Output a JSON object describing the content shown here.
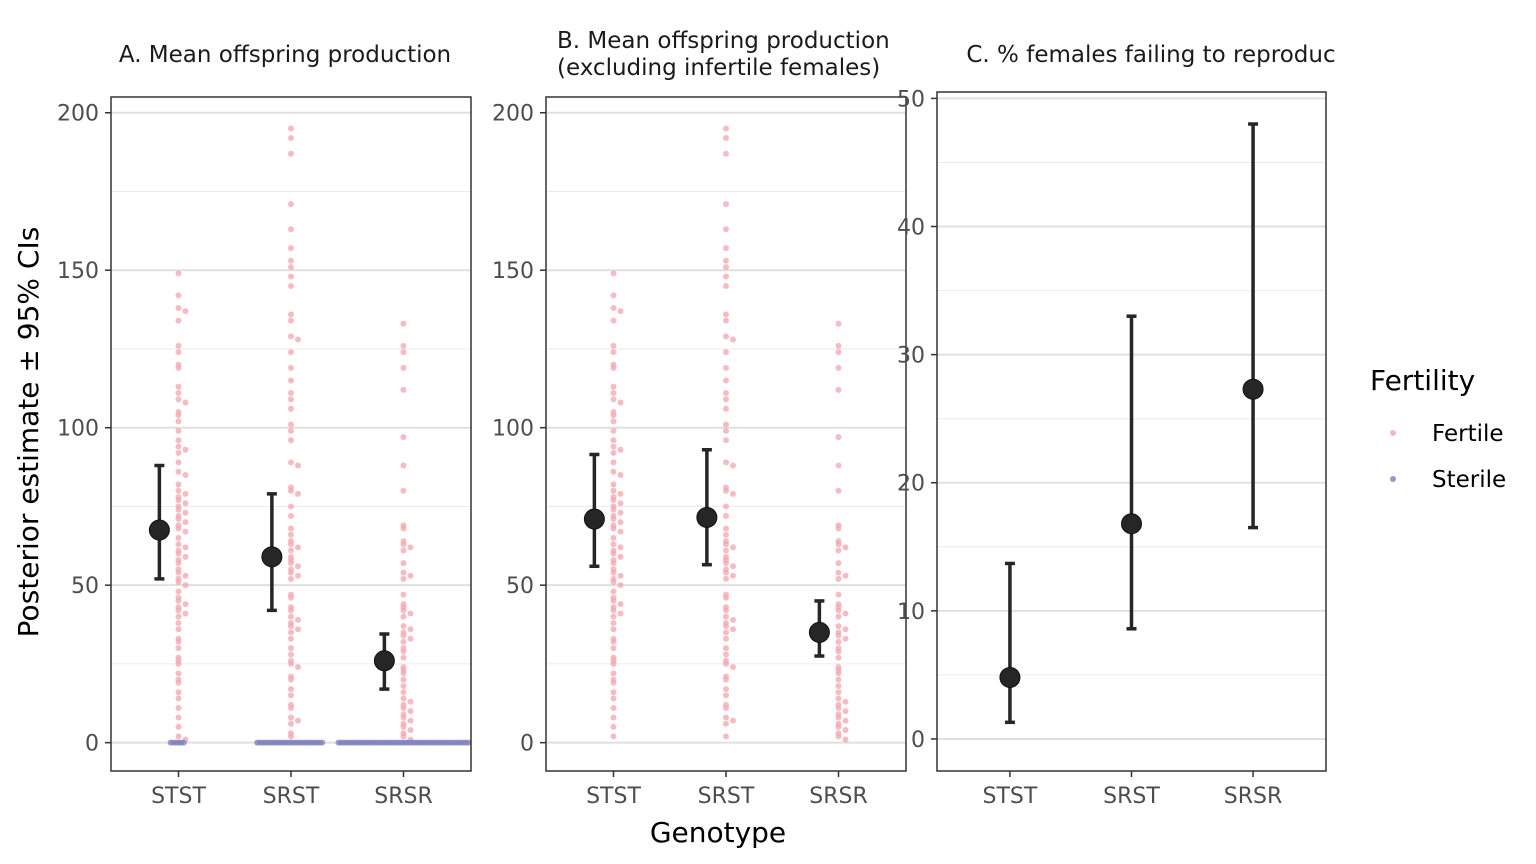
{
  "figure": {
    "y_axis_title": "Posterior estimate ± 95% CIs",
    "x_axis_title": "Genotype",
    "legend": {
      "title": "Fertility",
      "entries": [
        {
          "label": "Fertile",
          "color": "#f4a6ad"
        },
        {
          "label": "Sterile",
          "color": "#7f7fbf"
        }
      ]
    }
  },
  "chart_data": [
    {
      "type": "scatter",
      "title": "A. Mean offspring production",
      "categories": [
        "STST",
        "SRST",
        "SRSR"
      ],
      "ylim": [
        -9,
        205
      ],
      "yticks": [
        0,
        50,
        100,
        150,
        200
      ],
      "grid": true,
      "estimates": [
        {
          "category": "STST",
          "mean": 67.5,
          "lower": 52,
          "upper": 88
        },
        {
          "category": "SRST",
          "mean": 59,
          "lower": 42,
          "upper": 79
        },
        {
          "category": "SRSR",
          "mean": 26,
          "lower": 17,
          "upper": 34.5
        }
      ],
      "points": [
        {
          "category": "STST",
          "fertility": "Fertile",
          "values": [
            149,
            142,
            138,
            137,
            134,
            126,
            124,
            120,
            119,
            113,
            111,
            109,
            108,
            105,
            104,
            102,
            99,
            96,
            94,
            93,
            92,
            89,
            86,
            85,
            82,
            80,
            79,
            78,
            77,
            76,
            75,
            74,
            73,
            72,
            71,
            70,
            69,
            68,
            67,
            65,
            63,
            62,
            61,
            60,
            59,
            58,
            57,
            55,
            54,
            53,
            52,
            51,
            50,
            48,
            46,
            45,
            44,
            43,
            42,
            41,
            40,
            38,
            36,
            33,
            32,
            30,
            27,
            26,
            25,
            22,
            20,
            19,
            16,
            14,
            11,
            8,
            5,
            2,
            1
          ]
        },
        {
          "category": "STST",
          "fertility": "Sterile",
          "values": [
            0,
            0,
            0,
            0,
            0,
            0
          ]
        },
        {
          "category": "SRST",
          "fertility": "Fertile",
          "values": [
            195,
            192,
            187,
            171,
            163,
            157,
            153,
            151,
            148,
            145,
            136,
            134,
            129,
            128,
            124,
            119,
            115,
            111,
            109,
            106,
            101,
            99,
            96,
            89,
            88,
            81,
            80,
            79,
            75,
            72,
            68,
            66,
            64,
            63,
            62,
            61,
            59,
            58,
            57,
            56,
            55,
            54,
            53,
            52,
            47,
            46,
            43,
            42,
            40,
            39,
            38,
            37,
            36,
            35,
            33,
            30,
            28,
            26,
            25,
            24,
            21,
            20,
            17,
            15,
            12,
            11,
            8,
            7,
            6,
            3,
            2
          ]
        },
        {
          "category": "SRST",
          "fertility": "Sterile",
          "values": [
            0,
            0,
            0,
            0,
            0,
            0,
            0,
            0,
            0,
            0,
            0,
            0,
            0,
            0,
            0,
            0,
            0,
            0,
            0,
            0,
            0,
            0,
            0,
            0,
            0,
            0
          ]
        },
        {
          "category": "SRSR",
          "fertility": "Fertile",
          "values": [
            133,
            126,
            124,
            119,
            112,
            97,
            88,
            80,
            69,
            68,
            64,
            63,
            62,
            61,
            57,
            54,
            53,
            52,
            47,
            44,
            43,
            42,
            41,
            40,
            37,
            36,
            35,
            34,
            33,
            32,
            30,
            29,
            27,
            24,
            23,
            22,
            20,
            18,
            16,
            14,
            13,
            12,
            11,
            10,
            9,
            8,
            7,
            6,
            5,
            4,
            3,
            2,
            1
          ]
        },
        {
          "category": "SRSR",
          "fertility": "Sterile",
          "values": [
            0,
            0,
            0,
            0,
            0,
            0,
            0,
            0,
            0,
            0,
            0,
            0,
            0,
            0,
            0,
            0,
            0,
            0,
            0,
            0,
            0,
            0,
            0,
            0,
            0,
            0,
            0,
            0,
            0,
            0,
            0,
            0,
            0,
            0,
            0,
            0,
            0,
            0,
            0,
            0,
            0,
            0,
            0,
            0,
            0,
            0,
            0,
            0,
            0,
            0,
            0
          ]
        }
      ]
    },
    {
      "type": "scatter",
      "title": "B. Mean offspring production\n(excluding infertile females)",
      "categories": [
        "STST",
        "SRST",
        "SRSR"
      ],
      "ylim": [
        -9,
        205
      ],
      "yticks": [
        0,
        50,
        100,
        150,
        200
      ],
      "grid": true,
      "estimates": [
        {
          "category": "STST",
          "mean": 71,
          "lower": 56,
          "upper": 91.5
        },
        {
          "category": "SRST",
          "mean": 71.5,
          "lower": 56.5,
          "upper": 93
        },
        {
          "category": "SRSR",
          "mean": 35,
          "lower": 27.5,
          "upper": 45
        }
      ],
      "points": [
        {
          "category": "STST",
          "fertility": "Fertile",
          "values": [
            149,
            142,
            138,
            137,
            134,
            126,
            124,
            120,
            119,
            113,
            111,
            109,
            108,
            105,
            104,
            102,
            99,
            96,
            94,
            93,
            92,
            89,
            86,
            85,
            82,
            80,
            79,
            78,
            77,
            76,
            75,
            74,
            73,
            72,
            71,
            70,
            69,
            68,
            67,
            65,
            63,
            62,
            61,
            60,
            59,
            58,
            57,
            55,
            54,
            53,
            52,
            51,
            50,
            48,
            46,
            45,
            44,
            43,
            42,
            41,
            40,
            38,
            36,
            33,
            32,
            30,
            27,
            26,
            25,
            22,
            20,
            19,
            16,
            14,
            11,
            8,
            5,
            2
          ]
        },
        {
          "category": "SRST",
          "fertility": "Fertile",
          "values": [
            195,
            192,
            187,
            171,
            163,
            157,
            153,
            151,
            148,
            145,
            136,
            134,
            129,
            128,
            124,
            119,
            115,
            111,
            109,
            106,
            101,
            99,
            96,
            89,
            88,
            81,
            80,
            79,
            75,
            72,
            68,
            66,
            64,
            63,
            62,
            61,
            59,
            58,
            57,
            56,
            55,
            54,
            53,
            52,
            47,
            46,
            43,
            42,
            40,
            39,
            38,
            37,
            36,
            35,
            33,
            30,
            28,
            26,
            25,
            24,
            21,
            20,
            17,
            15,
            12,
            11,
            8,
            7,
            6,
            2
          ]
        },
        {
          "category": "SRSR",
          "fertility": "Fertile",
          "values": [
            133,
            126,
            124,
            119,
            112,
            97,
            88,
            80,
            69,
            68,
            64,
            63,
            62,
            61,
            57,
            54,
            53,
            52,
            47,
            44,
            43,
            42,
            41,
            40,
            37,
            36,
            35,
            34,
            33,
            32,
            30,
            29,
            27,
            24,
            23,
            22,
            20,
            18,
            16,
            14,
            13,
            12,
            11,
            10,
            9,
            8,
            7,
            6,
            5,
            4,
            3,
            2,
            1
          ]
        }
      ]
    },
    {
      "type": "scatter",
      "title": "C. % females failing to reproduc",
      "categories": [
        "STST",
        "SRST",
        "SRSR"
      ],
      "ylim": [
        -2.5,
        50.5
      ],
      "yticks": [
        0,
        10,
        20,
        30,
        40,
        50
      ],
      "grid": true,
      "estimates": [
        {
          "category": "STST",
          "mean": 4.8,
          "lower": 1.3,
          "upper": 13.7
        },
        {
          "category": "SRST",
          "mean": 16.8,
          "lower": 8.6,
          "upper": 33
        },
        {
          "category": "SRSR",
          "mean": 27.3,
          "lower": 16.5,
          "upper": 48
        }
      ],
      "points": []
    }
  ]
}
